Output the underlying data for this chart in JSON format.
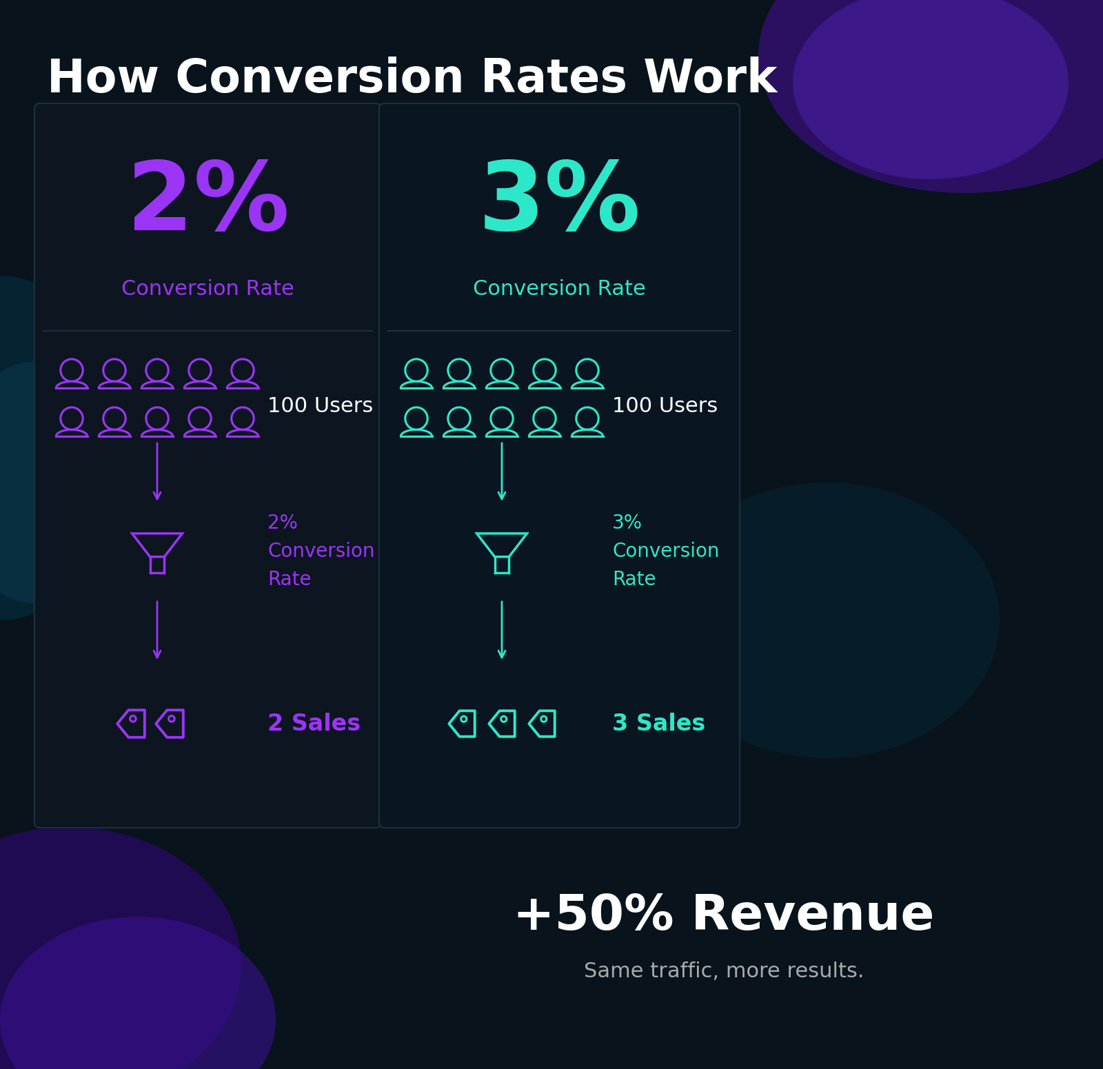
{
  "title": "How Conversion Rates Work",
  "title_color": "#ffffff",
  "title_fontsize": 48,
  "left_rate": "2%",
  "right_rate": "3%",
  "left_color": "#9b35f5",
  "right_color": "#2de8c8",
  "left_label": "Conversion Rate",
  "right_label": "Conversion Rate",
  "users_text": "100 Users",
  "left_filter_label": "2%\nConversion\nRate",
  "right_filter_label": "3%\nConversion\nRate",
  "left_sales_text": "2 Sales",
  "right_sales_text": "3 Sales",
  "revenue_text": "+50% Revenue",
  "revenue_sub": "Same traffic, more results.",
  "revenue_color": "#ffffff",
  "revenue_sub_color": "#aaaaaa",
  "card_left_bg": "#0c1520",
  "card_right_bg": "#0a1520",
  "card_edge": "#1e3040",
  "bg_dark": "#08131c",
  "white_text": "#ffffff"
}
